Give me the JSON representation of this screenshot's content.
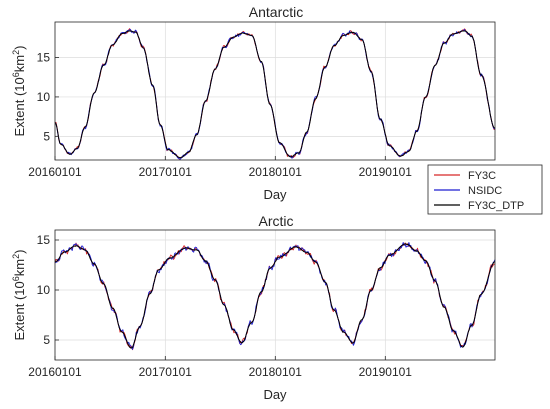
{
  "chart_data": [
    {
      "type": "line",
      "title": "Antarctic",
      "xlabel": "Day",
      "ylabel_base": "Extent (10",
      "ylabel_sup1": "6",
      "ylabel_mid": "km",
      "ylabel_sup2": "2",
      "ylabel_end": ")",
      "xlim": [
        "2016-01-01",
        "2019-12-31"
      ],
      "ylim": [
        2,
        19.5
      ],
      "xtick_labels": [
        "20160101",
        "20170101",
        "20180101",
        "20190101"
      ],
      "xtick_dates": [
        "2016-01-01",
        "2017-01-01",
        "2018-01-01",
        "2019-01-01"
      ],
      "ytick_labels": [
        "5",
        "10",
        "15"
      ],
      "yticks": [
        5,
        10,
        15
      ],
      "grid": true,
      "series": [
        {
          "name": "FY3C",
          "color": "#d62728"
        },
        {
          "name": "NSIDC",
          "color": "#1f1fd0"
        },
        {
          "name": "FY3C_DTP",
          "color": "#000000"
        }
      ],
      "x": [
        "2016-01-01",
        "2016-01-20",
        "2016-02-20",
        "2016-03-15",
        "2016-04-10",
        "2016-05-10",
        "2016-06-10",
        "2016-07-10",
        "2016-08-10",
        "2016-09-05",
        "2016-09-25",
        "2016-10-20",
        "2016-11-20",
        "2016-12-15",
        "2017-01-10",
        "2017-02-20",
        "2017-03-20",
        "2017-04-15",
        "2017-05-15",
        "2017-06-15",
        "2017-07-15",
        "2017-08-15",
        "2017-09-15",
        "2017-10-15",
        "2017-11-15",
        "2017-12-15",
        "2018-01-15",
        "2018-02-20",
        "2018-03-20",
        "2018-04-15",
        "2018-05-15",
        "2018-06-15",
        "2018-07-15",
        "2018-08-15",
        "2018-09-15",
        "2018-10-15",
        "2018-11-15",
        "2018-12-15",
        "2019-01-15",
        "2019-02-20",
        "2019-03-20",
        "2019-04-15",
        "2019-05-15",
        "2019-06-15",
        "2019-07-15",
        "2019-08-15",
        "2019-09-20",
        "2019-10-15",
        "2019-11-15",
        "2019-12-31"
      ],
      "values": [
        6.8,
        4.0,
        2.7,
        3.5,
        6.2,
        10.5,
        14.0,
        16.6,
        18.0,
        18.4,
        18.2,
        16.2,
        11.5,
        6.5,
        3.3,
        2.3,
        3.0,
        5.2,
        9.5,
        13.5,
        16.3,
        17.6,
        18.1,
        17.8,
        14.5,
        9.0,
        4.2,
        2.4,
        2.9,
        5.5,
        9.8,
        13.8,
        16.5,
        17.8,
        18.2,
        17.3,
        13.2,
        7.2,
        3.8,
        2.5,
        3.1,
        5.6,
        10.0,
        14.0,
        16.8,
        18.0,
        18.4,
        17.7,
        12.8,
        6.0
      ]
    },
    {
      "type": "line",
      "title": "Arctic",
      "xlabel": "Day",
      "ylabel_base": "Extent (10",
      "ylabel_sup1": "6",
      "ylabel_mid": "km",
      "ylabel_sup2": "2",
      "ylabel_end": ")",
      "xlim": [
        "2016-01-01",
        "2019-12-31"
      ],
      "ylim": [
        3,
        16
      ],
      "xtick_labels": [
        "20160101",
        "20170101",
        "20180101",
        "20190101"
      ],
      "xtick_dates": [
        "2016-01-01",
        "2017-01-01",
        "2018-01-01",
        "2019-01-01"
      ],
      "ytick_labels": [
        "5",
        "10",
        "15"
      ],
      "yticks": [
        5,
        10,
        15
      ],
      "grid": true,
      "series": [
        {
          "name": "FY3C",
          "color": "#d62728"
        },
        {
          "name": "NSIDC",
          "color": "#1f1fd0"
        },
        {
          "name": "FY3C_DTP",
          "color": "#000000"
        }
      ],
      "x": [
        "2016-01-01",
        "2016-02-01",
        "2016-03-10",
        "2016-04-10",
        "2016-05-10",
        "2016-06-10",
        "2016-07-10",
        "2016-08-10",
        "2016-09-10",
        "2016-10-10",
        "2016-11-10",
        "2016-12-10",
        "2017-01-15",
        "2017-03-10",
        "2017-04-15",
        "2017-05-15",
        "2017-06-15",
        "2017-07-15",
        "2017-08-15",
        "2017-09-12",
        "2017-10-15",
        "2017-11-15",
        "2017-12-15",
        "2018-01-15",
        "2018-03-10",
        "2018-04-15",
        "2018-05-15",
        "2018-06-15",
        "2018-07-15",
        "2018-08-15",
        "2018-09-15",
        "2018-10-15",
        "2018-11-15",
        "2018-12-15",
        "2019-01-15",
        "2019-03-10",
        "2019-04-15",
        "2019-05-15",
        "2019-06-15",
        "2019-07-15",
        "2019-08-15",
        "2019-09-15",
        "2019-10-15",
        "2019-11-15",
        "2019-12-31"
      ],
      "values": [
        12.8,
        13.8,
        14.4,
        14.0,
        12.6,
        10.6,
        8.2,
        5.8,
        4.2,
        6.4,
        9.6,
        12.0,
        13.2,
        14.2,
        14.0,
        12.9,
        11.0,
        8.5,
        6.0,
        4.7,
        6.8,
        9.8,
        12.2,
        13.3,
        14.3,
        13.8,
        12.8,
        10.8,
        8.0,
        5.8,
        4.7,
        7.0,
        10.0,
        12.2,
        13.5,
        14.6,
        13.9,
        12.9,
        10.9,
        8.3,
        5.9,
        4.3,
        6.5,
        9.6,
        12.8
      ]
    }
  ],
  "legend": {
    "placement": "right-between-panels",
    "entries": [
      {
        "name": "FY3C",
        "color": "#d62728"
      },
      {
        "name": "NSIDC",
        "color": "#1f1fd0"
      },
      {
        "name": "FY3C_DTP",
        "color": "#000000"
      }
    ]
  }
}
